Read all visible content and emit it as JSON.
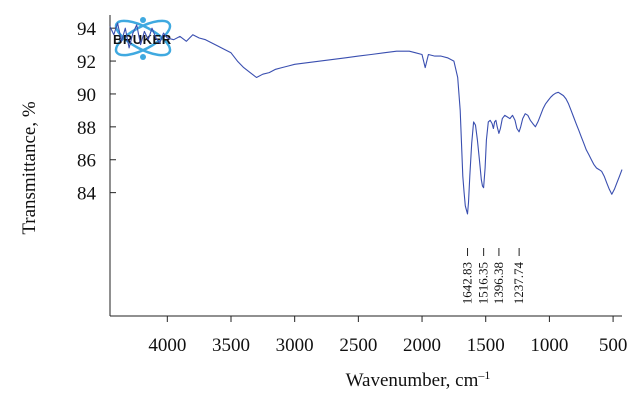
{
  "logo": {
    "text": "BRUKER",
    "accent_color": "#3fa9e0"
  },
  "chart_data": {
    "type": "line",
    "title": "",
    "xlabel": "Wavenumber, cm",
    "xlabel_sup": "–1",
    "ylabel": "Transmittance, %",
    "xlim": [
      4450,
      430
    ],
    "ylim": [
      76.5,
      94.8
    ],
    "x_ticks": [
      4000,
      3500,
      3000,
      2500,
      2000,
      1500,
      1000,
      500
    ],
    "y_ticks": [
      84,
      86,
      88,
      90,
      92,
      94
    ],
    "grid": false,
    "line_color": "#3a4fb0",
    "series": [
      {
        "x": [
          4450,
          4420,
          4390,
          4360,
          4330,
          4300,
          4270,
          4240,
          4210,
          4180,
          4150,
          4120,
          4090,
          4060,
          4030,
          4000,
          3950,
          3900,
          3850,
          3800,
          3750,
          3700,
          3650,
          3600,
          3550,
          3500,
          3450,
          3400,
          3350,
          3300,
          3250,
          3200,
          3150,
          3100,
          3050,
          3000,
          2900,
          2800,
          2700,
          2600,
          2500,
          2400,
          2300,
          2200,
          2100,
          2050,
          2000,
          1975,
          1950,
          1900,
          1850,
          1800,
          1750,
          1720,
          1700,
          1690,
          1680,
          1670,
          1660,
          1650,
          1642.83,
          1635,
          1625,
          1610,
          1595,
          1580,
          1565,
          1550,
          1535,
          1525,
          1516.35,
          1505,
          1495,
          1480,
          1465,
          1450,
          1440,
          1430,
          1420,
          1410,
          1396.38,
          1385,
          1370,
          1350,
          1330,
          1310,
          1290,
          1270,
          1255,
          1237.74,
          1225,
          1210,
          1190,
          1170,
          1150,
          1130,
          1110,
          1090,
          1070,
          1050,
          1030,
          1010,
          990,
          970,
          950,
          930,
          910,
          890,
          870,
          850,
          830,
          810,
          790,
          770,
          750,
          730,
          710,
          690,
          670,
          650,
          630,
          610,
          590,
          570,
          550,
          530,
          510,
          490,
          470,
          450,
          430
        ],
        "y": [
          94.1,
          93.6,
          94.3,
          93.2,
          94.0,
          92.8,
          93.7,
          94.2,
          93.0,
          93.8,
          93.3,
          94.0,
          93.4,
          93.1,
          93.7,
          93.4,
          93.3,
          93.5,
          93.2,
          93.6,
          93.4,
          93.3,
          93.1,
          92.9,
          92.7,
          92.5,
          92.0,
          91.6,
          91.3,
          91.0,
          91.2,
          91.3,
          91.5,
          91.6,
          91.7,
          91.8,
          91.9,
          92.0,
          92.1,
          92.2,
          92.3,
          92.4,
          92.5,
          92.6,
          92.6,
          92.5,
          92.4,
          91.6,
          92.4,
          92.3,
          92.3,
          92.2,
          92.0,
          91.0,
          89.0,
          87.0,
          85.0,
          84.0,
          83.2,
          82.9,
          82.7,
          83.4,
          85.0,
          87.0,
          88.3,
          88.1,
          87.2,
          86.0,
          84.8,
          84.4,
          84.3,
          85.5,
          87.2,
          88.3,
          88.4,
          88.2,
          87.9,
          88.3,
          88.4,
          88.0,
          87.6,
          87.9,
          88.5,
          88.7,
          88.6,
          88.5,
          88.7,
          88.4,
          87.9,
          87.7,
          88.0,
          88.5,
          88.8,
          88.7,
          88.4,
          88.2,
          88.0,
          88.3,
          88.7,
          89.1,
          89.4,
          89.6,
          89.8,
          89.95,
          90.05,
          90.1,
          90.0,
          89.9,
          89.7,
          89.4,
          89.0,
          88.6,
          88.2,
          87.8,
          87.4,
          87.0,
          86.6,
          86.3,
          86.0,
          85.7,
          85.5,
          85.4,
          85.3,
          85.0,
          84.6,
          84.2,
          83.9,
          84.2,
          84.6,
          85.0,
          85.4
        ]
      }
    ],
    "annotations": [
      {
        "x": 1642.83,
        "label": "1642.83"
      },
      {
        "x": 1516.35,
        "label": "1516.35"
      },
      {
        "x": 1396.38,
        "label": "1396.38"
      },
      {
        "x": 1237.74,
        "label": "1237.74"
      }
    ]
  }
}
